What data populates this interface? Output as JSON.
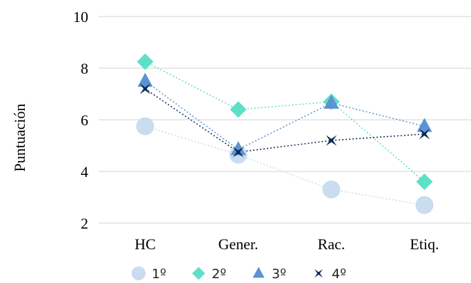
{
  "chart_data": {
    "type": "line",
    "ylabel": "Puntuación",
    "xlabel": "",
    "ylim": [
      2,
      10
    ],
    "yticks": [
      2,
      4,
      6,
      8,
      10
    ],
    "categories": [
      "HC",
      "Gener.",
      "Rac.",
      "Etiq."
    ],
    "grid": true,
    "legend": "bottom",
    "series": [
      {
        "name": "1º",
        "values": [
          5.75,
          4.65,
          3.3,
          2.7
        ],
        "color": "#c9dcf0",
        "marker": "circle",
        "line": "dotted"
      },
      {
        "name": "2º",
        "values": [
          8.25,
          6.4,
          6.7,
          3.6
        ],
        "color": "#5ee0c8",
        "marker": "diamond",
        "line": "dotted"
      },
      {
        "name": "3º",
        "values": [
          7.5,
          4.85,
          6.65,
          5.75
        ],
        "color": "#5b93d3",
        "marker": "triangle",
        "line": "dotted"
      },
      {
        "name": "4º",
        "values": [
          7.2,
          4.75,
          5.2,
          5.45
        ],
        "color": "#0d2a55",
        "marker": "star",
        "line": "dotted"
      }
    ]
  }
}
